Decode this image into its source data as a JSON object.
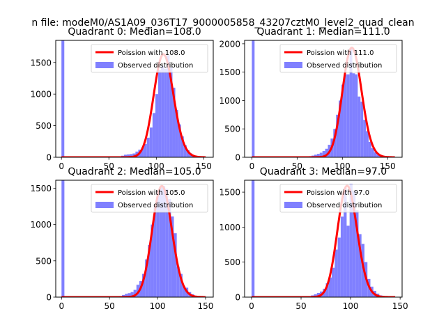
{
  "figure": {
    "suptitle": "n file: modeM0/AS1A09_036T17_9000005858_43207cztM0_level2_quad_clean"
  },
  "colors": {
    "hist": "#8080ff",
    "fit": "#ff0000",
    "axis": "#000000"
  },
  "chart_data": [
    {
      "type": "bar",
      "title": "Quadrant 0: Median=108.0",
      "median": 108.0,
      "xlim": [
        -6,
        160
      ],
      "ylim": [
        0,
        1850
      ],
      "xticks": [
        0,
        50,
        100,
        150
      ],
      "yticks": [
        0,
        500,
        1000,
        1500
      ],
      "legend": {
        "position": "top-right",
        "entries": [
          "Poission with 108.0",
          "Observed distribution"
        ]
      },
      "series": [
        {
          "name": "Poission with 108.0",
          "kind": "line",
          "mu": 108.0,
          "x_range": [
            0,
            152
          ],
          "peak": 1630
        },
        {
          "name": "Observed distribution",
          "kind": "hist",
          "bins": [
            [
              0,
              3,
              1850
            ],
            [
              63,
              66,
              25
            ],
            [
              66,
              69,
              40
            ],
            [
              69,
              72,
              45
            ],
            [
              72,
              75,
              50
            ],
            [
              75,
              78,
              60
            ],
            [
              78,
              81,
              90
            ],
            [
              81,
              84,
              120
            ],
            [
              84,
              87,
              150
            ],
            [
              87,
              90,
              210
            ],
            [
              90,
              93,
              310
            ],
            [
              93,
              96,
              470
            ],
            [
              96,
              99,
              700
            ],
            [
              99,
              102,
              1000
            ],
            [
              102,
              105,
              1380
            ],
            [
              105,
              108,
              1440
            ],
            [
              108,
              111,
              1400
            ],
            [
              111,
              114,
              1620
            ],
            [
              114,
              117,
              1420
            ],
            [
              117,
              120,
              1100
            ],
            [
              120,
              123,
              750
            ],
            [
              123,
              126,
              520
            ],
            [
              126,
              129,
              330
            ],
            [
              129,
              132,
              190
            ],
            [
              132,
              135,
              110
            ],
            [
              135,
              138,
              60
            ],
            [
              138,
              141,
              30
            ],
            [
              141,
              144,
              15
            ],
            [
              144,
              147,
              8
            ]
          ]
        }
      ]
    },
    {
      "type": "bar",
      "title": "Quadrant 1: Median=111.0",
      "median": 111.0,
      "xlim": [
        -8,
        166
      ],
      "ylim": [
        0,
        2060
      ],
      "xticks": [
        0,
        50,
        100,
        150
      ],
      "yticks": [
        0,
        500,
        1000,
        1500,
        2000
      ],
      "legend": {
        "position": "top-right",
        "entries": [
          "Poission with 111.0",
          "Observed distribution"
        ]
      },
      "series": [
        {
          "name": "Poission with 111.0",
          "kind": "line",
          "mu": 111.0,
          "x_range": [
            0,
            158
          ],
          "peak": 1930
        },
        {
          "name": "Observed distribution",
          "kind": "hist",
          "bins": [
            [
              0,
              3,
              2060
            ],
            [
              63,
              66,
              20
            ],
            [
              66,
              69,
              30
            ],
            [
              69,
              72,
              45
            ],
            [
              72,
              75,
              60
            ],
            [
              75,
              78,
              80
            ],
            [
              78,
              81,
              110
            ],
            [
              81,
              84,
              150
            ],
            [
              84,
              87,
              220
            ],
            [
              87,
              90,
              330
            ],
            [
              90,
              93,
              500
            ],
            [
              93,
              96,
              750
            ],
            [
              96,
              99,
              1000
            ],
            [
              99,
              102,
              1280
            ],
            [
              102,
              105,
              1460
            ],
            [
              105,
              108,
              1460
            ],
            [
              108,
              111,
              1930
            ],
            [
              111,
              114,
              1480
            ],
            [
              114,
              117,
              1460
            ],
            [
              117,
              120,
              1070
            ],
            [
              120,
              123,
              980
            ],
            [
              123,
              126,
              660
            ],
            [
              126,
              129,
              460
            ],
            [
              129,
              132,
              270
            ],
            [
              132,
              135,
              160
            ],
            [
              135,
              138,
              90
            ],
            [
              138,
              141,
              45
            ],
            [
              141,
              144,
              25
            ],
            [
              144,
              147,
              10
            ]
          ]
        }
      ]
    },
    {
      "type": "bar",
      "title": "Quadrant 2: Median=105.0",
      "median": 105.0,
      "xlim": [
        -6,
        158
      ],
      "ylim": [
        0,
        1610
      ],
      "xticks": [
        0,
        50,
        100,
        150
      ],
      "yticks": [
        0,
        500,
        1000,
        1500
      ],
      "legend": {
        "position": "top-right",
        "entries": [
          "Poission with 105.0",
          "Observed distribution"
        ]
      },
      "series": [
        {
          "name": "Poission with 105.0",
          "kind": "line",
          "mu": 105.0,
          "x_range": [
            0,
            150
          ],
          "peak": 1530
        },
        {
          "name": "Observed distribution",
          "kind": "hist",
          "bins": [
            [
              0,
              3,
              1610
            ],
            [
              60,
              63,
              15
            ],
            [
              63,
              66,
              30
            ],
            [
              66,
              69,
              45
            ],
            [
              69,
              72,
              55
            ],
            [
              72,
              75,
              70
            ],
            [
              75,
              78,
              100
            ],
            [
              78,
              81,
              170
            ],
            [
              81,
              84,
              220
            ],
            [
              84,
              87,
              320
            ],
            [
              87,
              90,
              520
            ],
            [
              90,
              93,
              720
            ],
            [
              93,
              96,
              1000
            ],
            [
              96,
              99,
              1240
            ],
            [
              99,
              102,
              1450
            ],
            [
              102,
              105,
              1510
            ],
            [
              105,
              108,
              1530
            ],
            [
              108,
              111,
              1490
            ],
            [
              111,
              114,
              1350
            ],
            [
              114,
              117,
              1110
            ],
            [
              117,
              120,
              880
            ],
            [
              120,
              123,
              420
            ],
            [
              123,
              126,
              320
            ],
            [
              126,
              129,
              150
            ],
            [
              129,
              132,
              130
            ],
            [
              132,
              135,
              70
            ],
            [
              135,
              138,
              40
            ],
            [
              138,
              141,
              20
            ],
            [
              141,
              144,
              10
            ]
          ]
        }
      ]
    },
    {
      "type": "bar",
      "title": "Quadrant 3: Median=97.0",
      "median": 97.0,
      "xlim": [
        -7,
        152
      ],
      "ylim": [
        0,
        1670
      ],
      "xticks": [
        0,
        50,
        100,
        150
      ],
      "yticks": [
        0,
        500,
        1000,
        1500
      ],
      "legend": {
        "position": "top-right",
        "entries": [
          "Poission with 97.0",
          "Observed distribution"
        ]
      },
      "series": [
        {
          "name": "Poission with 97.0",
          "kind": "line",
          "mu": 97.0,
          "x_range": [
            0,
            145
          ],
          "peak": 1590
        },
        {
          "name": "Observed distribution",
          "kind": "hist",
          "bins": [
            [
              0,
              3,
              1670
            ],
            [
              57,
              60,
              15
            ],
            [
              60,
              63,
              25
            ],
            [
              63,
              66,
              40
            ],
            [
              66,
              69,
              60
            ],
            [
              69,
              72,
              80
            ],
            [
              72,
              75,
              120
            ],
            [
              75,
              78,
              200
            ],
            [
              78,
              81,
              280
            ],
            [
              81,
              84,
              420
            ],
            [
              84,
              87,
              680
            ],
            [
              87,
              90,
              850
            ],
            [
              90,
              93,
              1150
            ],
            [
              93,
              96,
              1560
            ],
            [
              96,
              99,
              1020
            ],
            [
              99,
              102,
              1620
            ],
            [
              102,
              105,
              1520
            ],
            [
              105,
              108,
              1240
            ],
            [
              108,
              111,
              900
            ],
            [
              111,
              114,
              760
            ],
            [
              114,
              117,
              500
            ],
            [
              117,
              120,
              260
            ],
            [
              120,
              123,
              150
            ],
            [
              123,
              126,
              90
            ],
            [
              126,
              129,
              50
            ],
            [
              129,
              132,
              25
            ],
            [
              132,
              135,
              12
            ]
          ]
        }
      ]
    }
  ]
}
